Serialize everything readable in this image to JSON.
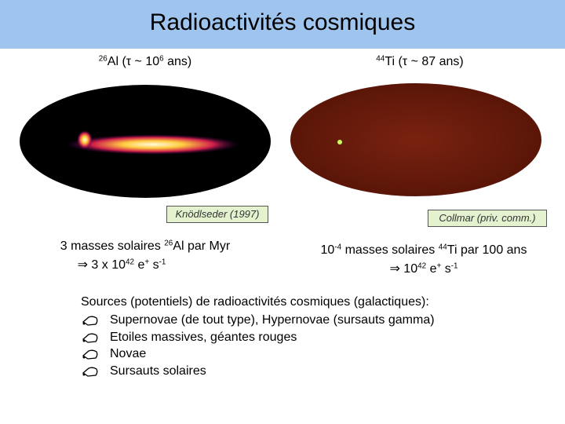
{
  "header": {
    "title": "Radioactivités cosmiques"
  },
  "left": {
    "label": [
      "26",
      "Al (τ ~ 10",
      "6",
      " ans)"
    ],
    "caption": "Knödlseder (1997)",
    "line1": [
      "3 masses solaires ",
      "26",
      "Al par Myr"
    ],
    "line2": [
      "⇒ 3 x 10",
      "42",
      " e",
      "+",
      " s",
      "-1"
    ]
  },
  "right": {
    "label": [
      "44",
      "Ti (τ ~ 87 ans)"
    ],
    "caption": "Collmar (priv. comm.)",
    "line1": [
      "10",
      "-4",
      " masses solaires ",
      "44",
      "Ti par 100 ans"
    ],
    "line2": [
      "⇒ 10",
      "42",
      " e",
      "+",
      " s",
      "-1"
    ]
  },
  "sources": {
    "heading": "Sources (potentiels) de radioactivités cosmiques (galactiques):",
    "items": [
      "Supernovae (de tout type), Hypernovae (sursauts gamma)",
      "Etoiles massives, géantes rouges",
      "Novae",
      "Sursauts solaires"
    ]
  }
}
